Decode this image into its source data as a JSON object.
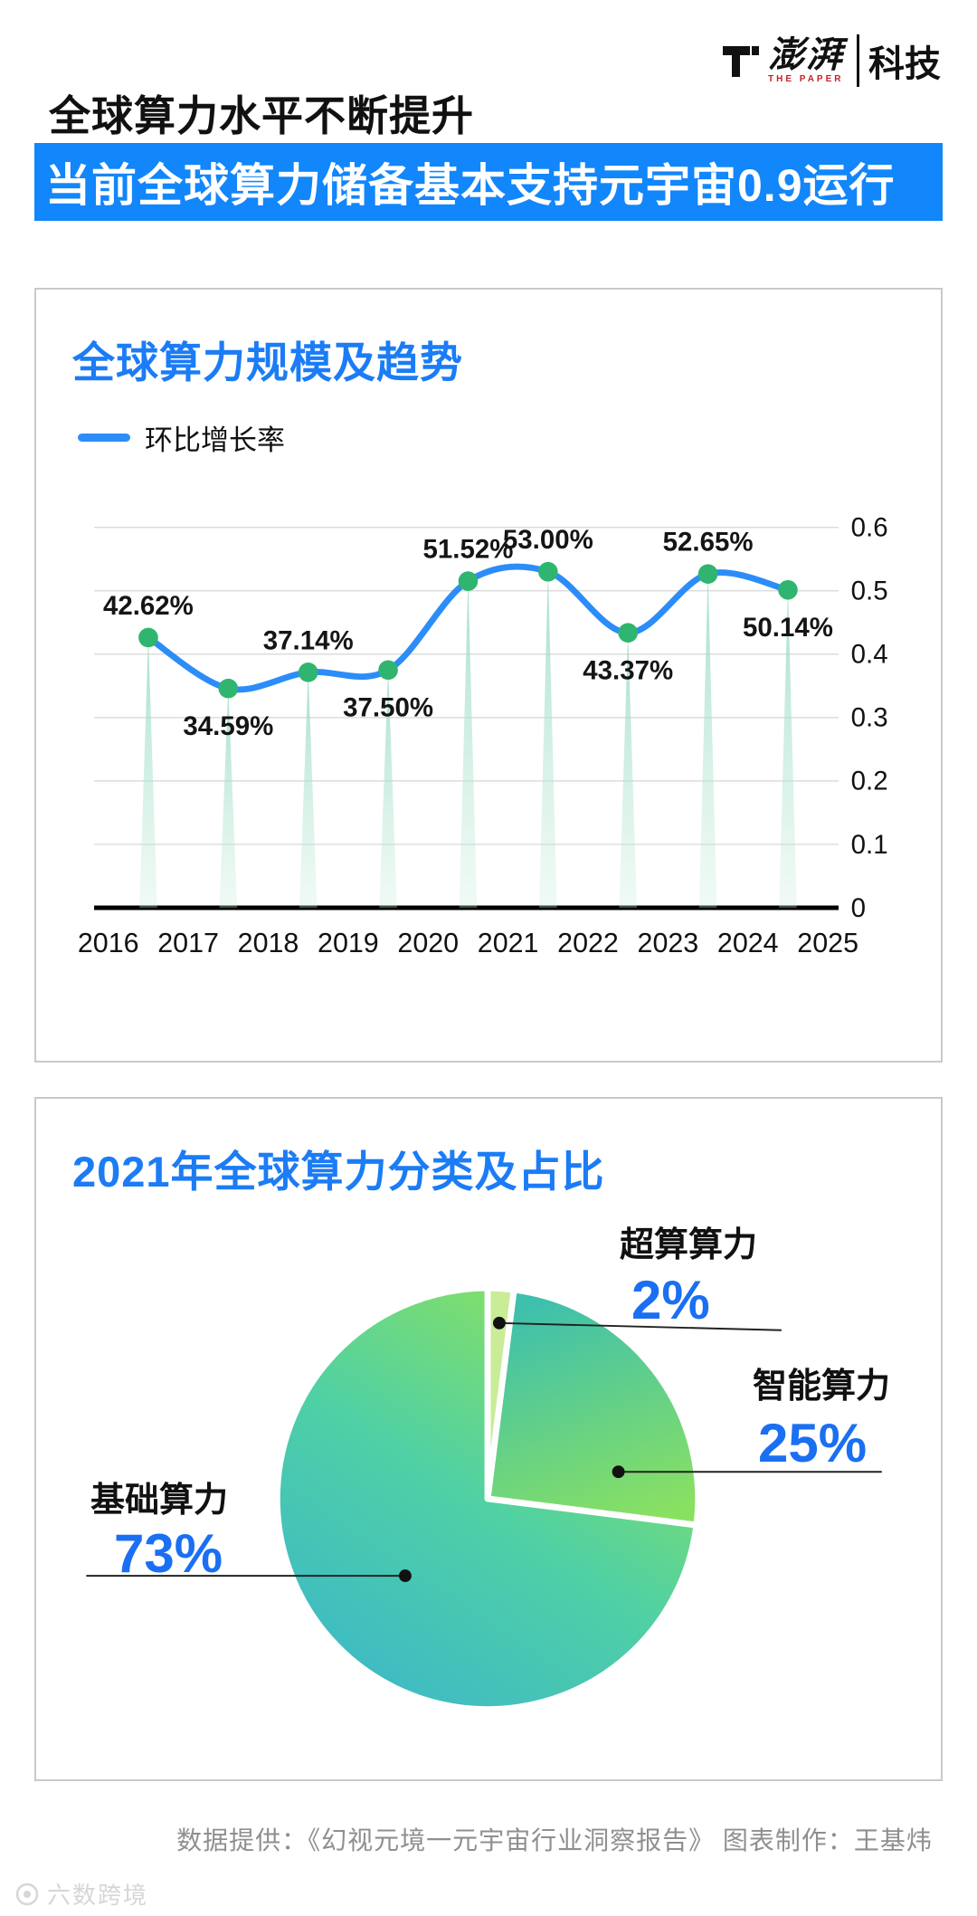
{
  "brand": {
    "name": "澎湃",
    "sub": "THE PAPER",
    "suffix": "科技",
    "accent": "#c62127"
  },
  "header": {
    "title": "全球算力水平不断提升"
  },
  "banner": {
    "text": "当前全球算力储备基本支持元宇宙0.9运行",
    "bg": "#1286fb"
  },
  "chart_data": [
    {
      "type": "line",
      "title": "全球算力规模及趋势",
      "legend": [
        {
          "label": "环比增长率",
          "color": "#2c8df8"
        }
      ],
      "legend_position": "top-left",
      "categories": [
        "2016",
        "2017",
        "2018",
        "2019",
        "2020",
        "2021",
        "2022",
        "2023",
        "2024",
        "2025"
      ],
      "series": [
        {
          "name": "环比增长率",
          "values": [
            0.4262,
            0.3459,
            0.3714,
            0.375,
            0.5152,
            0.53,
            0.4337,
            0.5265,
            0.5014
          ],
          "labels": [
            "42.62%",
            "34.59%",
            "37.14%",
            "37.50%",
            "51.52%",
            "53.00%",
            "43.37%",
            "52.65%",
            "50.14%"
          ],
          "label_side": [
            "above",
            "below",
            "above",
            "below",
            "above",
            "above",
            "below",
            "above",
            "below"
          ]
        }
      ],
      "ylim": [
        0,
        0.6
      ],
      "yticks": [
        "0",
        "0.1",
        "0.2",
        "0.3",
        "0.4",
        "0.5",
        "0.6"
      ],
      "yaxis_side": "right",
      "grid": true,
      "line_color": "#2c8df8",
      "point_color": "#2fb56f",
      "spike_color": "#9adbc2"
    },
    {
      "type": "pie",
      "title": "2021年全球算力分类及占比",
      "slices": [
        {
          "label": "超算算力",
          "pct": "2%",
          "value": 2
        },
        {
          "label": "智能算力",
          "pct": "25%",
          "value": 25
        },
        {
          "label": "基础算力",
          "pct": "73%",
          "value": 73
        }
      ],
      "start_angle": "top",
      "direction": "clockwise",
      "pct_color": "#1a6ff2"
    }
  ],
  "footer": {
    "credit": "数据提供：《幻视元境一元宇宙行业洞察报告》  图表制作：王基炜",
    "watermark": "六数跨境"
  }
}
